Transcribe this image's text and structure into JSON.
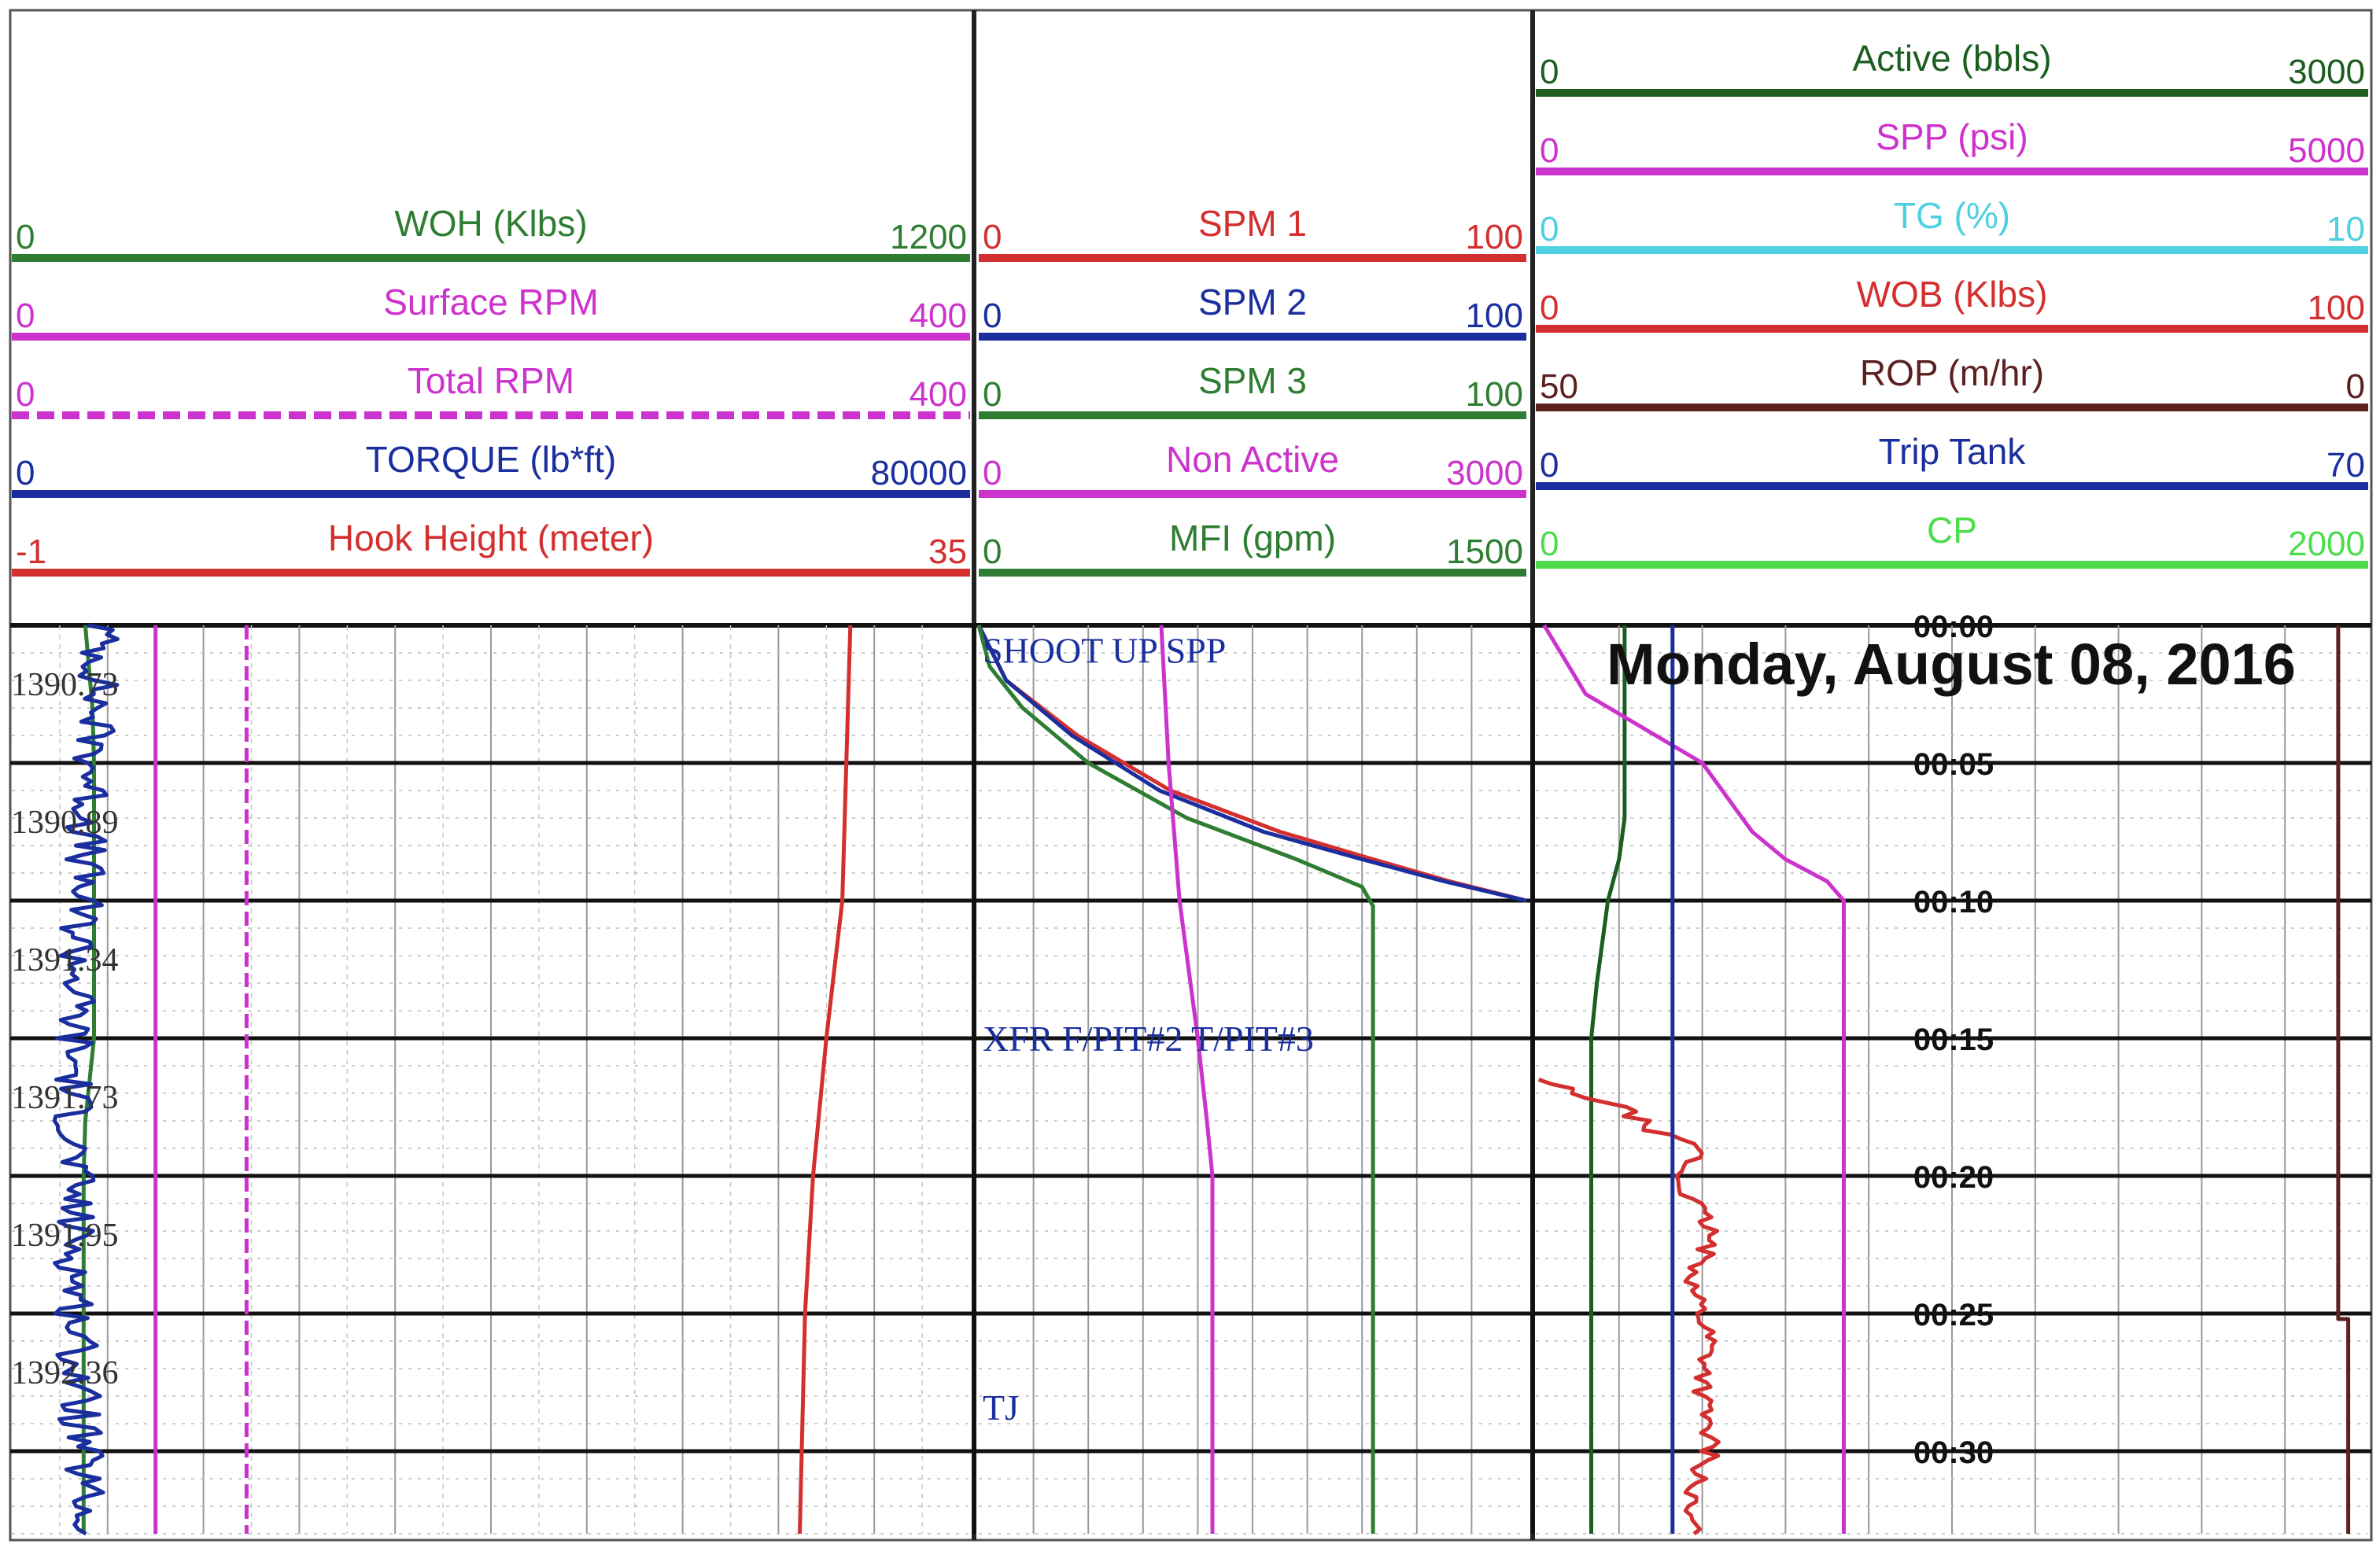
{
  "chart_data": {
    "type": "line",
    "date_label": "Monday, August 08, 2016",
    "time_labels": [
      "00:00",
      "00:05",
      "00:10",
      "00:15",
      "00:20",
      "00:25",
      "00:30"
    ],
    "depth_labels": [
      "1390.73",
      "1390.89",
      "1391.34",
      "1391.73",
      "1391.95",
      "1392.36"
    ],
    "annotations": [
      {
        "text": "SHOOT UP SPP",
        "track": 1,
        "time_min": 0.9
      },
      {
        "text": "XFR F/PIT#2 T/PIT#3",
        "track": 1,
        "time_min": 15.0
      },
      {
        "text": "TJ",
        "track": 1,
        "time_min": 28.4
      }
    ],
    "tracks": [
      {
        "name": "track-1",
        "curves": [
          {
            "name": "WOH (Klbs)",
            "min": "0",
            "max": "1200",
            "color": "#2e7d32",
            "dashed": false,
            "points": [
              [
                0,
                92
              ],
              [
                3,
                101
              ],
              [
                5,
                103
              ],
              [
                15,
                103
              ],
              [
                18,
                92
              ],
              [
                20,
                90
              ],
              [
                33,
                90
              ]
            ]
          },
          {
            "name": "Surface RPM",
            "min": "0",
            "max": "400",
            "color": "#cc33cc",
            "dashed": false,
            "points": [
              [
                0,
                60
              ],
              [
                33,
                60
              ]
            ]
          },
          {
            "name": "Total RPM",
            "min": "0",
            "max": "400",
            "color": "#cc33cc",
            "dashed": true,
            "points": [
              [
                0,
                98
              ],
              [
                33,
                98
              ]
            ]
          },
          {
            "name": "TORQUE (lb*ft)",
            "min": "0",
            "max": "80000",
            "color": "#1a2e9e",
            "dashed": false,
            "noise": 3500,
            "points": [
              [
                0,
                7500
              ],
              [
                5,
                6800
              ],
              [
                10,
                5800
              ],
              [
                15,
                5200
              ],
              [
                20,
                5200
              ],
              [
                25,
                5400
              ],
              [
                30,
                5800
              ],
              [
                33,
                6200
              ]
            ]
          },
          {
            "name": "Hook Height (meter)",
            "min": "-1",
            "max": "35",
            "color": "#d32f2f",
            "dashed": false,
            "points": [
              [
                0,
                30.5
              ],
              [
                10,
                30.2
              ],
              [
                15,
                29.6
              ],
              [
                20,
                29.1
              ],
              [
                25,
                28.8
              ],
              [
                33,
                28.6
              ]
            ]
          }
        ]
      },
      {
        "name": "track-2",
        "curves": [
          {
            "name": "SPM 1",
            "min": "0",
            "max": "100",
            "color": "#d32f2f",
            "dashed": false,
            "points": [
              [
                0,
                0
              ],
              [
                2,
                5
              ],
              [
                4,
                18
              ],
              [
                6,
                35
              ],
              [
                7.5,
                55
              ],
              [
                8.5,
                72
              ],
              [
                9.3,
                86
              ],
              [
                10,
                100
              ]
            ]
          },
          {
            "name": "SPM 2",
            "min": "0",
            "max": "100",
            "color": "#1a2e9e",
            "dashed": false,
            "points": [
              [
                0,
                0
              ],
              [
                2,
                5
              ],
              [
                4,
                17
              ],
              [
                6,
                33
              ],
              [
                7.5,
                52
              ],
              [
                8.5,
                70
              ],
              [
                9.3,
                85
              ],
              [
                10,
                100
              ]
            ]
          },
          {
            "name": "SPM 3",
            "min": "0",
            "max": "100",
            "color": "#2e7d32",
            "dashed": false,
            "points": [
              [
                0,
                0
              ],
              [
                1.5,
                2
              ],
              [
                3,
                8
              ],
              [
                5,
                20
              ],
              [
                7,
                38
              ],
              [
                8.5,
                58
              ],
              [
                9.5,
                70
              ],
              [
                10.2,
                72
              ],
              [
                33,
                72
              ]
            ]
          },
          {
            "name": "Non Active",
            "min": "0",
            "max": "3000",
            "color": "#cc33cc",
            "dashed": false,
            "points": [
              [
                0,
                1000
              ],
              [
                5,
                1040
              ],
              [
                10,
                1100
              ],
              [
                15,
                1200
              ],
              [
                18,
                1250
              ],
              [
                20,
                1280
              ],
              [
                33,
                1280
              ]
            ]
          },
          {
            "name": "MFI (gpm)",
            "min": "0",
            "max": "1500",
            "color": "#2e7d32",
            "dashed": false,
            "points": []
          }
        ]
      },
      {
        "name": "track-3",
        "curves": [
          {
            "name": "Active (bbls)",
            "min": "0",
            "max": "3000",
            "color": "#1b5e20",
            "dashed": false,
            "points": [
              [
                0,
                320
              ],
              [
                7,
                320
              ],
              [
                8.5,
                300
              ],
              [
                10,
                260
              ],
              [
                13,
                220
              ],
              [
                15,
                200
              ],
              [
                20,
                200
              ],
              [
                33,
                200
              ]
            ]
          },
          {
            "name": "SPP (psi)",
            "min": "0",
            "max": "5000",
            "color": "#cc33cc",
            "dashed": false,
            "points": [
              [
                0,
                50
              ],
              [
                2.5,
                300
              ],
              [
                5,
                1000
              ],
              [
                7.5,
                1300
              ],
              [
                8.5,
                1500
              ],
              [
                9.3,
                1750
              ],
              [
                10,
                1850
              ],
              [
                33,
                1850
              ]
            ]
          },
          {
            "name": "TG (%)",
            "min": "0",
            "max": "10",
            "color": "#4dd0e1",
            "dashed": false,
            "points": []
          },
          {
            "name": "WOB (Klbs)",
            "min": "0",
            "max": "100",
            "color": "#d32f2f",
            "dashed": false,
            "noise": 2.5,
            "points": [
              [
                16.5,
                0
              ],
              [
                17.5,
                10
              ],
              [
                18.5,
                15
              ],
              [
                19,
                20
              ],
              [
                20,
                17
              ],
              [
                22,
                21
              ],
              [
                24,
                19
              ],
              [
                26,
                21
              ],
              [
                28,
                20
              ],
              [
                30,
                21
              ],
              [
                32,
                18
              ],
              [
                33,
                19
              ]
            ]
          },
          {
            "name": "ROP (m/hr)",
            "min": "50",
            "max": "0",
            "color": "#5d2020",
            "dashed": false,
            "points": [
              [
                0,
                1.8
              ],
              [
                25.2,
                1.8
              ],
              [
                25.2,
                1.2
              ],
              [
                26.5,
                1.2
              ],
              [
                33,
                1.2
              ]
            ]
          },
          {
            "name": "Trip Tank",
            "min": "0",
            "max": "70",
            "color": "#1a2e9e",
            "dashed": false,
            "points": [
              [
                0,
                11.5
              ],
              [
                33,
                11.5
              ]
            ]
          },
          {
            "name": "CP",
            "min": "0",
            "max": "2000",
            "color": "#4cdc4c",
            "dashed": false,
            "points": []
          }
        ]
      }
    ]
  }
}
